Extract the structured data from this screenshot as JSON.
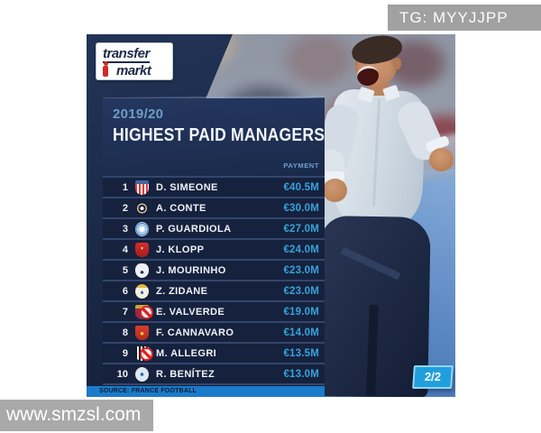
{
  "watermarks": {
    "telegram": "TG: MYYJJPP",
    "website": "www.smzsl.com"
  },
  "infographic": {
    "logo": {
      "line1": "transfer",
      "line2": "markt"
    },
    "season": "2019/20",
    "title": "HIGHEST PAID MANAGERS",
    "column_header": "PAYMENT",
    "source": "SOURCE: FRANCE FOOTBALL",
    "page_indicator": "2/2",
    "rows": [
      {
        "rank": "1",
        "club": "Atlético Madrid",
        "name": "D. SIMEONE",
        "value": "€40.5M",
        "departed": false
      },
      {
        "rank": "2",
        "club": "Inter",
        "name": "A. CONTE",
        "value": "€30.0M",
        "departed": false
      },
      {
        "rank": "3",
        "club": "Manchester City",
        "name": "P. GUARDIOLA",
        "value": "€27.0M",
        "departed": false
      },
      {
        "rank": "4",
        "club": "Liverpool",
        "name": "J. KLOPP",
        "value": "€24.0M",
        "departed": false
      },
      {
        "rank": "5",
        "club": "Tottenham Hotspur",
        "name": "J. MOURINHO",
        "value": "€23.0M",
        "departed": false
      },
      {
        "rank": "6",
        "club": "Real Madrid",
        "name": "Z. ZIDANE",
        "value": "€23.0M",
        "departed": false
      },
      {
        "rank": "7",
        "club": "FC Barcelona",
        "name": "E. VALVERDE",
        "value": "€19.0M",
        "departed": true
      },
      {
        "rank": "8",
        "club": "Guangzhou Evergrande",
        "name": "F. CANNAVARO",
        "value": "€14.0M",
        "departed": false
      },
      {
        "rank": "9",
        "club": "Juventus",
        "name": "M. ALLEGRI",
        "value": "€13.5M",
        "departed": true
      },
      {
        "rank": "10",
        "club": "Dalian Yifang",
        "name": "R. BENÍTEZ",
        "value": "€13.0M",
        "departed": false
      }
    ],
    "colors": {
      "panel_navy": "#16223d",
      "value_blue": "#35a3dc",
      "season_blue": "#6f9cc6",
      "source_bar_blue": "#1a7bca",
      "badge_blue": "#1f9fdd",
      "watermark_gray": "#a1a1a1"
    }
  }
}
